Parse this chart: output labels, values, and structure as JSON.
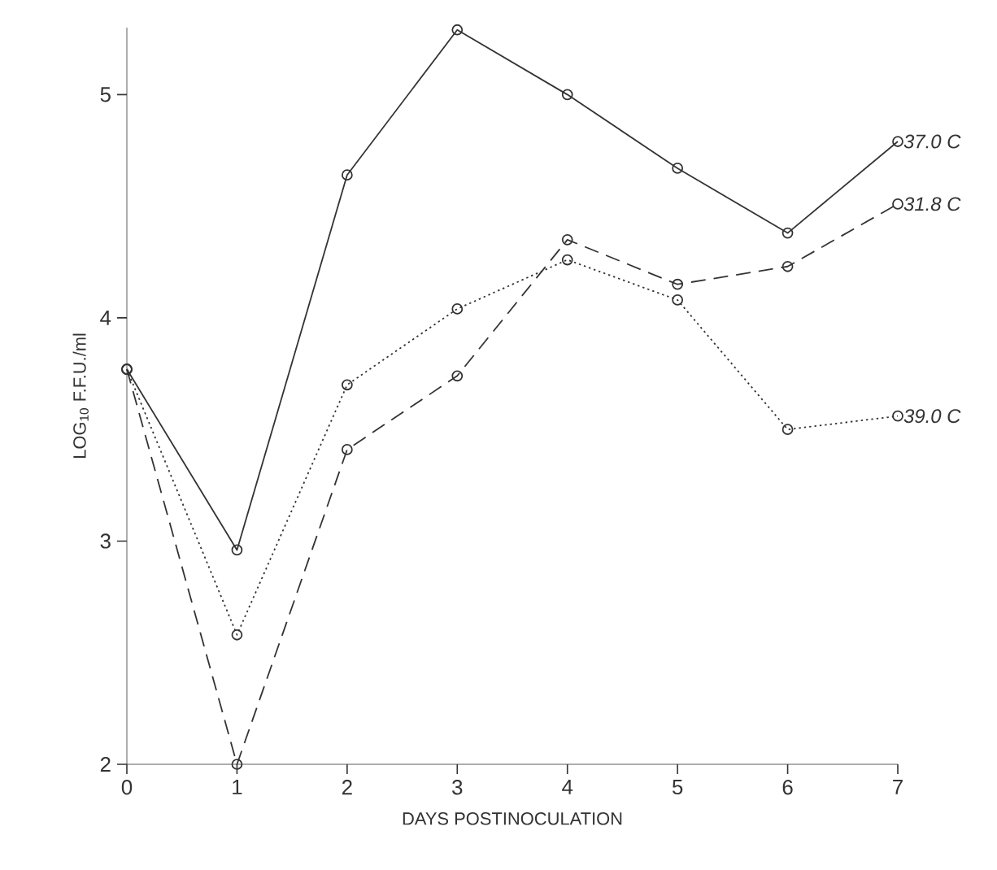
{
  "chart_data": {
    "type": "line",
    "xlabel": "DAYS POSTINOCULATION",
    "ylabel": "LOG$_{10}$ F.F.U./ml",
    "x": [
      0,
      1,
      2,
      3,
      4,
      5,
      6,
      7
    ],
    "xlim": [
      0,
      7
    ],
    "xticks": [
      0,
      1,
      2,
      3,
      4,
      5,
      6,
      7
    ],
    "ylim": [
      2,
      5.3
    ],
    "yticks": [
      2,
      3,
      4,
      5
    ],
    "marker": "circle",
    "legend": false,
    "grid": false,
    "series": [
      {
        "name": "37.0 C",
        "color": "#333333",
        "line_style": "solid",
        "values": [
          3.77,
          2.96,
          4.64,
          5.29,
          5.0,
          4.67,
          4.38,
          4.79
        ]
      },
      {
        "name": "31.8 C",
        "color": "#333333",
        "line_style": "dashed",
        "values": [
          3.77,
          2.0,
          3.41,
          3.74,
          4.35,
          4.15,
          4.23,
          4.51
        ]
      },
      {
        "name": "39.0 C",
        "color": "#333333",
        "line_style": "dotted",
        "values": [
          3.77,
          2.58,
          3.7,
          4.04,
          4.26,
          4.08,
          3.5,
          3.56
        ]
      }
    ]
  }
}
